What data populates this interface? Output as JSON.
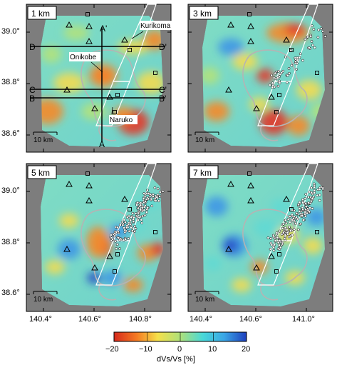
{
  "panels": [
    {
      "depth_label": "1 km",
      "scale_label": "10 km"
    },
    {
      "depth_label": "3 km",
      "scale_label": "10 km"
    },
    {
      "depth_label": "5 km",
      "scale_label": "10 km"
    },
    {
      "depth_label": "7 km",
      "scale_label": "10 km"
    }
  ],
  "lat_ticks": [
    "39.0°",
    "38.8°",
    "38.6°"
  ],
  "lon_ticks": [
    "140.4°",
    "140.6°",
    "140.8°",
    "141.0°"
  ],
  "place_labels": {
    "kurikoma": "Kurikoma",
    "onikobe": "Onikobe",
    "naruko": "Naruko"
  },
  "profiles": {
    "a": "A",
    "a_prime": "A'",
    "b": "B",
    "b_prime": "B'",
    "c": "C",
    "c_prime": "C'",
    "d": "D",
    "d_prime": "D'"
  },
  "colorbar": {
    "ticks": [
      "−20",
      "−10",
      "0",
      "10",
      "20"
    ],
    "label": "dVs/Vs [%]",
    "colors": [
      "#d62a1e",
      "#f47a22",
      "#f5e04a",
      "#aee07a",
      "#48d8d8",
      "#3aa6e6",
      "#1e3fbd"
    ]
  },
  "colors": {
    "background": "#7d7d7d",
    "outline": "#b4b4b4"
  }
}
